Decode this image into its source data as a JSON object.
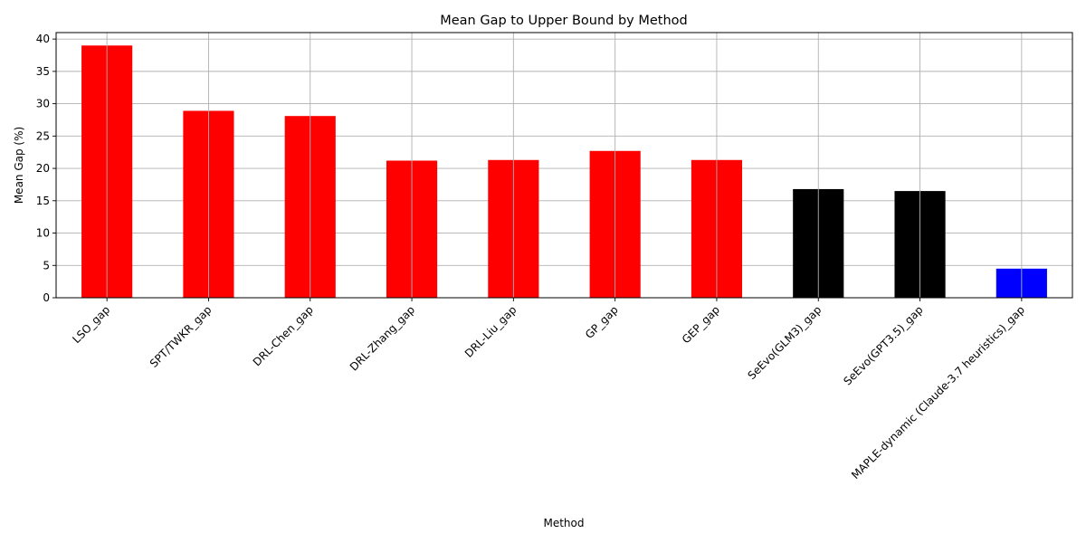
{
  "chart_data": {
    "type": "bar",
    "title": "Mean Gap to Upper Bound by Method",
    "xlabel": "Method",
    "ylabel": "Mean Gap (%)",
    "ylim": [
      0,
      41
    ],
    "yticks": [
      0,
      5,
      10,
      15,
      20,
      25,
      30,
      35,
      40
    ],
    "grid": true,
    "categories": [
      "LSO_gap",
      "SPT/TWKR_gap",
      "DRL-Chen_gap",
      "DRL-Zhang_gap",
      "DRL-Liu_gap",
      "GP_gap",
      "GEP_gap",
      "SeEvo(GLM3)_gap",
      "SeEvo(GPT3.5)_gap",
      "MAPLE-dynamic (Claude-3.7 heuristics)_gap"
    ],
    "values": [
      39.0,
      28.9,
      28.1,
      21.2,
      21.3,
      22.7,
      21.3,
      16.8,
      16.5,
      4.5
    ],
    "colors": [
      "#ff0000",
      "#ff0000",
      "#ff0000",
      "#ff0000",
      "#ff0000",
      "#ff0000",
      "#ff0000",
      "#000000",
      "#000000",
      "#0000ff"
    ]
  }
}
